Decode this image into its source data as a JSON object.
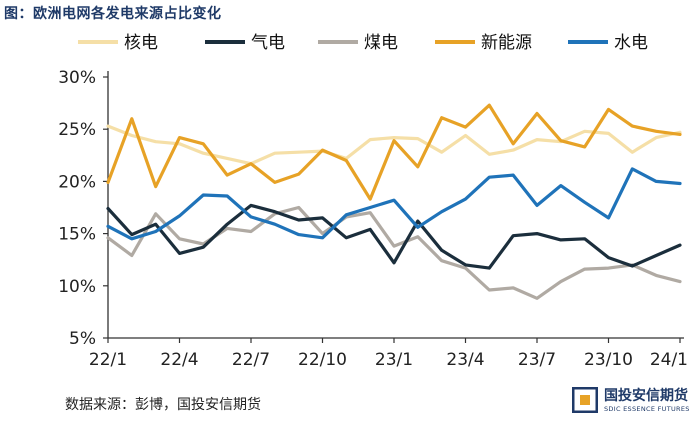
{
  "figure_title": "图：欧洲电网各发电来源占比变化",
  "source_note": "数据来源：彭博，国投安信期货",
  "logo": {
    "cn": "国投安信期货",
    "en": "SDIC ESSENCE FUTURES"
  },
  "colors": {
    "nuclear": "#f5dfa7",
    "gas": "#1b2e3c",
    "coal": "#b0aaa3",
    "renewable": "#e7a226",
    "hydro": "#1f73b9",
    "title": "#1f3a68",
    "logo_blue": "#1f3a68",
    "logo_gold": "#e7a226"
  },
  "chart_data": {
    "type": "line",
    "title": "",
    "xlabel": "",
    "ylabel": "",
    "ylim": [
      5,
      30
    ],
    "yticks": [
      "30%",
      "25%",
      "20%",
      "15%",
      "10%",
      "5%"
    ],
    "ytick_values": [
      30,
      25,
      20,
      15,
      10,
      5
    ],
    "xtick_labels": [
      "22/1",
      "22/4",
      "22/7",
      "22/10",
      "23/1",
      "23/4",
      "23/7",
      "23/10",
      "24/1"
    ],
    "xtick_index": [
      0,
      3,
      6,
      9,
      12,
      15,
      18,
      21,
      24
    ],
    "x": [
      "22/1",
      "22/2",
      "22/3",
      "22/4",
      "22/5",
      "22/6",
      "22/7",
      "22/8",
      "22/9",
      "22/10",
      "22/11",
      "22/12",
      "23/1",
      "23/2",
      "23/3",
      "23/4",
      "23/5",
      "23/6",
      "23/7",
      "23/8",
      "23/9",
      "23/10",
      "23/11",
      "23/12",
      "24/1"
    ],
    "legend_position": "top",
    "series": [
      {
        "name": "核电",
        "key": "nuclear",
        "values": [
          25.3,
          24.4,
          23.8,
          23.6,
          22.7,
          22.2,
          21.7,
          22.7,
          22.8,
          22.9,
          22.2,
          24.0,
          24.2,
          24.1,
          22.8,
          24.4,
          22.6,
          23.0,
          24.0,
          23.8,
          24.8,
          24.6,
          22.8,
          24.2,
          24.7
        ]
      },
      {
        "name": "气电",
        "key": "gas",
        "values": [
          17.4,
          14.9,
          15.9,
          13.1,
          13.7,
          15.9,
          17.7,
          17.1,
          16.3,
          16.5,
          14.6,
          15.4,
          12.2,
          16.2,
          13.4,
          12.0,
          11.7,
          14.8,
          15.0,
          14.4,
          14.5,
          12.7,
          11.9,
          12.9,
          13.9
        ]
      },
      {
        "name": "煤电",
        "key": "coal",
        "values": [
          14.6,
          12.9,
          16.9,
          14.5,
          14.0,
          15.5,
          15.2,
          16.9,
          17.5,
          15.0,
          16.6,
          17.0,
          13.8,
          14.7,
          12.4,
          11.7,
          9.6,
          9.8,
          8.8,
          10.4,
          11.6,
          11.7,
          12.0,
          11.0,
          10.4
        ]
      },
      {
        "name": "新能源",
        "key": "renewable",
        "values": [
          19.9,
          26.0,
          19.5,
          24.2,
          23.6,
          20.6,
          21.7,
          19.9,
          20.7,
          23.0,
          22.0,
          18.3,
          23.9,
          21.4,
          26.1,
          25.2,
          27.3,
          23.6,
          26.5,
          23.9,
          23.3,
          26.9,
          25.3,
          24.8,
          24.5
        ]
      },
      {
        "name": "水电",
        "key": "hydro",
        "values": [
          15.7,
          14.5,
          15.2,
          16.7,
          18.7,
          18.6,
          16.6,
          15.9,
          14.9,
          14.6,
          16.8,
          17.5,
          18.2,
          15.6,
          17.1,
          18.3,
          20.4,
          20.6,
          17.7,
          19.6,
          18.0,
          16.5,
          21.2,
          20.0,
          19.8
        ]
      }
    ]
  }
}
